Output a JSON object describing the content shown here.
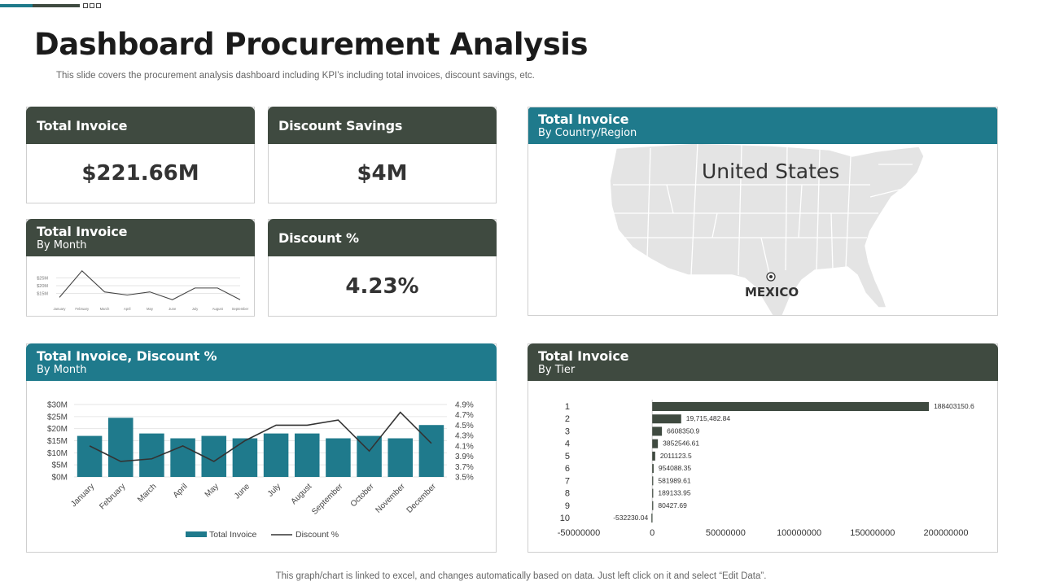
{
  "page": {
    "title": "Dashboard Procurement Analysis",
    "subtitle": "This slide covers the procurement analysis dashboard including KPI’s including total invoices, discount savings, etc.",
    "footnote": "This graph/chart is linked to excel,  and changes automatically based on data. Just left click on it and select “Edit Data”."
  },
  "kpis": {
    "total_invoice": {
      "title": "Total Invoice",
      "value": "$221.66M"
    },
    "discount_savings": {
      "title": "Discount Savings",
      "value": "$4M"
    },
    "discount_pct": {
      "title": "Discount %",
      "value": "4.23%"
    }
  },
  "cards": {
    "by_month": {
      "title": "Total Invoice",
      "subtitle": "By Month"
    },
    "map": {
      "title": "Total Invoice",
      "subtitle": "By Country/Region",
      "label_us": "United States",
      "label_mx": "MEXICO"
    },
    "combo": {
      "title": "Total Invoice, Discount %",
      "subtitle": "By Month"
    },
    "tier": {
      "title": "Total Invoice",
      "subtitle": "By Tier"
    }
  },
  "colors": {
    "dark": "#3f4a40",
    "teal": "#1f7a8c",
    "line": "#333333"
  },
  "chart_data": [
    {
      "type": "line",
      "categories": [
        "January",
        "February",
        "March",
        "April",
        "May",
        "June",
        "July",
        "August",
        "September"
      ],
      "values": [
        12.5,
        29.5,
        16,
        14,
        16,
        11,
        18.5,
        18.5,
        11
      ],
      "ytick_labels": [
        "$25M",
        "$20M",
        "$15M"
      ],
      "ylim": [
        8,
        32
      ],
      "grid": true
    },
    {
      "type": "bar",
      "categories": [
        "January",
        "February",
        "March",
        "April",
        "May",
        "June",
        "July",
        "August",
        "September",
        "October",
        "November",
        "December"
      ],
      "series": [
        {
          "name": "Total Invoice",
          "type": "bar",
          "axis": "left",
          "values": [
            17,
            24.5,
            18,
            16,
            17,
            16,
            18,
            18,
            16,
            17,
            16,
            21.5
          ]
        },
        {
          "name": "Discount %",
          "type": "line",
          "axis": "right",
          "values": [
            4.1,
            3.8,
            3.85,
            4.1,
            3.8,
            4.2,
            4.5,
            4.5,
            4.6,
            4.0,
            4.75,
            4.15
          ]
        }
      ],
      "y_left": {
        "ylim": [
          0,
          30
        ],
        "ticks": [
          "$0M",
          "$5M",
          "$10M",
          "$15M",
          "$20M",
          "$25M",
          "$30M"
        ]
      },
      "y_right": {
        "ylim": [
          3.5,
          4.9
        ],
        "ticks": [
          "3.5%",
          "3.7%",
          "3.9%",
          "4.1%",
          "4.3%",
          "4.5%",
          "4.7%",
          "4.9%"
        ]
      },
      "grid": true,
      "legend": "bottom"
    },
    {
      "type": "bar",
      "orientation": "horizontal",
      "categories": [
        "1",
        "2",
        "3",
        "4",
        "5",
        "6",
        "7",
        "8",
        "9",
        "10"
      ],
      "values": [
        188403150.6,
        19715482.84,
        6608350.9,
        3852546.61,
        2011123.5,
        954088.35,
        581989.61,
        189133.95,
        80427.69,
        -532230.04
      ],
      "value_labels": [
        "188403150.6",
        "19,715,482.84",
        "6608350.9",
        "3852546.61",
        "2011123.5",
        "954088.35",
        "581989.61",
        "189133.95",
        "80427.69",
        "-532230.04"
      ],
      "xticks": [
        -50000000,
        0,
        50000000,
        100000000,
        150000000,
        200000000
      ],
      "xtick_labels": [
        "-50000000",
        "0",
        "50000000",
        "100000000",
        "150000000",
        "200000000"
      ],
      "xlim": [
        -50000000,
        200000000
      ]
    }
  ]
}
